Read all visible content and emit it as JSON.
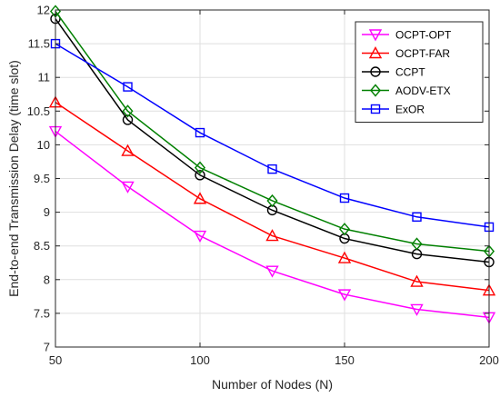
{
  "chart_data": {
    "type": "line",
    "title": "",
    "xlabel": "Number of Nodes (N)",
    "ylabel": "End-to-end Transmission Delay (time slot)",
    "xlim": [
      50,
      200
    ],
    "ylim": [
      7,
      12
    ],
    "xticks": [
      50,
      100,
      150,
      200
    ],
    "yticks": [
      7,
      7.5,
      8,
      8.5,
      9,
      9.5,
      10,
      10.5,
      11,
      11.5,
      12
    ],
    "ytick_labels": [
      "7",
      "7.5",
      "8",
      "8.5",
      "9",
      "9.5",
      "10",
      "10.5",
      "11",
      "11.5",
      "12"
    ],
    "xtick_labels": [
      "50",
      "100",
      "150",
      "200"
    ],
    "grid": true,
    "legend_position": "top-right",
    "x": [
      50,
      75,
      100,
      125,
      150,
      175,
      200
    ],
    "series": [
      {
        "name": "OCPT-OPT",
        "color": "#ff00ff",
        "marker": "triangle-down",
        "values": [
          10.2,
          9.38,
          8.65,
          8.13,
          7.78,
          7.56,
          7.44
        ]
      },
      {
        "name": "OCPT-FAR",
        "color": "#ff0000",
        "marker": "triangle-up",
        "values": [
          10.63,
          9.91,
          9.2,
          8.65,
          8.32,
          7.97,
          7.84
        ]
      },
      {
        "name": "CCPT",
        "color": "#000000",
        "marker": "circle",
        "values": [
          11.87,
          10.37,
          9.55,
          9.03,
          8.61,
          8.38,
          8.26
        ]
      },
      {
        "name": "AODV-ETX",
        "color": "#008000",
        "marker": "diamond",
        "values": [
          11.98,
          10.5,
          9.66,
          9.17,
          8.75,
          8.53,
          8.42
        ]
      },
      {
        "name": "ExOR",
        "color": "#0000ff",
        "marker": "square",
        "values": [
          11.5,
          10.86,
          10.18,
          9.64,
          9.21,
          8.93,
          8.78
        ]
      }
    ]
  }
}
